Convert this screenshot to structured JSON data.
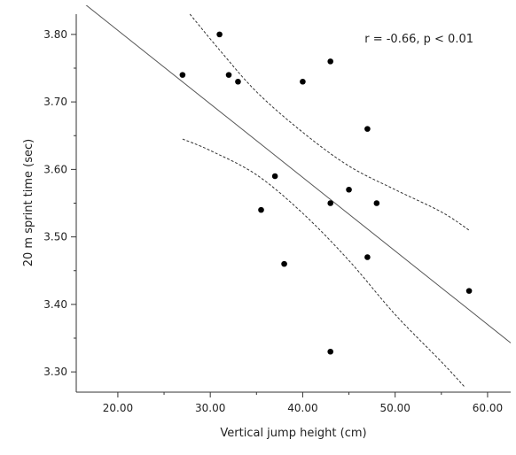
{
  "chart_data": {
    "type": "scatter",
    "xlabel": "Vertical jump height (cm)",
    "ylabel": "20 m sprint time (sec)",
    "xlim": [
      15.5,
      62.5
    ],
    "ylim": [
      3.27,
      3.83
    ],
    "x_ticks": [
      "20.00",
      "30.00",
      "40.00",
      "50.00",
      "60.00"
    ],
    "y_ticks": [
      "3.30",
      "3.40",
      "3.50",
      "3.60",
      "3.70",
      "3.80"
    ],
    "annotation": "r = -0.66, p < 0.01",
    "points": [
      {
        "x": 27,
        "y": 3.74
      },
      {
        "x": 31,
        "y": 3.8
      },
      {
        "x": 32,
        "y": 3.74
      },
      {
        "x": 33,
        "y": 3.73
      },
      {
        "x": 35.5,
        "y": 3.54
      },
      {
        "x": 37,
        "y": 3.59
      },
      {
        "x": 38,
        "y": 3.46
      },
      {
        "x": 40,
        "y": 3.73
      },
      {
        "x": 43,
        "y": 3.76
      },
      {
        "x": 43,
        "y": 3.55
      },
      {
        "x": 43,
        "y": 3.33
      },
      {
        "x": 45,
        "y": 3.57
      },
      {
        "x": 47,
        "y": 3.66
      },
      {
        "x": 47,
        "y": 3.47
      },
      {
        "x": 48,
        "y": 3.55
      },
      {
        "x": 58,
        "y": 3.42
      }
    ],
    "regression_line": [
      [
        15.5,
        3.855
      ],
      [
        62.5,
        3.343
      ]
    ],
    "confidence_upper": [
      [
        27.8,
        3.83
      ],
      [
        31,
        3.777
      ],
      [
        35,
        3.715
      ],
      [
        40,
        3.655
      ],
      [
        45,
        3.605
      ],
      [
        50,
        3.57
      ],
      [
        55,
        3.537
      ],
      [
        58,
        3.51
      ]
    ],
    "confidence_lower": [
      [
        27,
        3.645
      ],
      [
        30,
        3.628
      ],
      [
        35,
        3.592
      ],
      [
        40,
        3.535
      ],
      [
        45,
        3.465
      ],
      [
        50,
        3.385
      ],
      [
        55,
        3.315
      ],
      [
        57.5,
        3.278
      ]
    ]
  }
}
